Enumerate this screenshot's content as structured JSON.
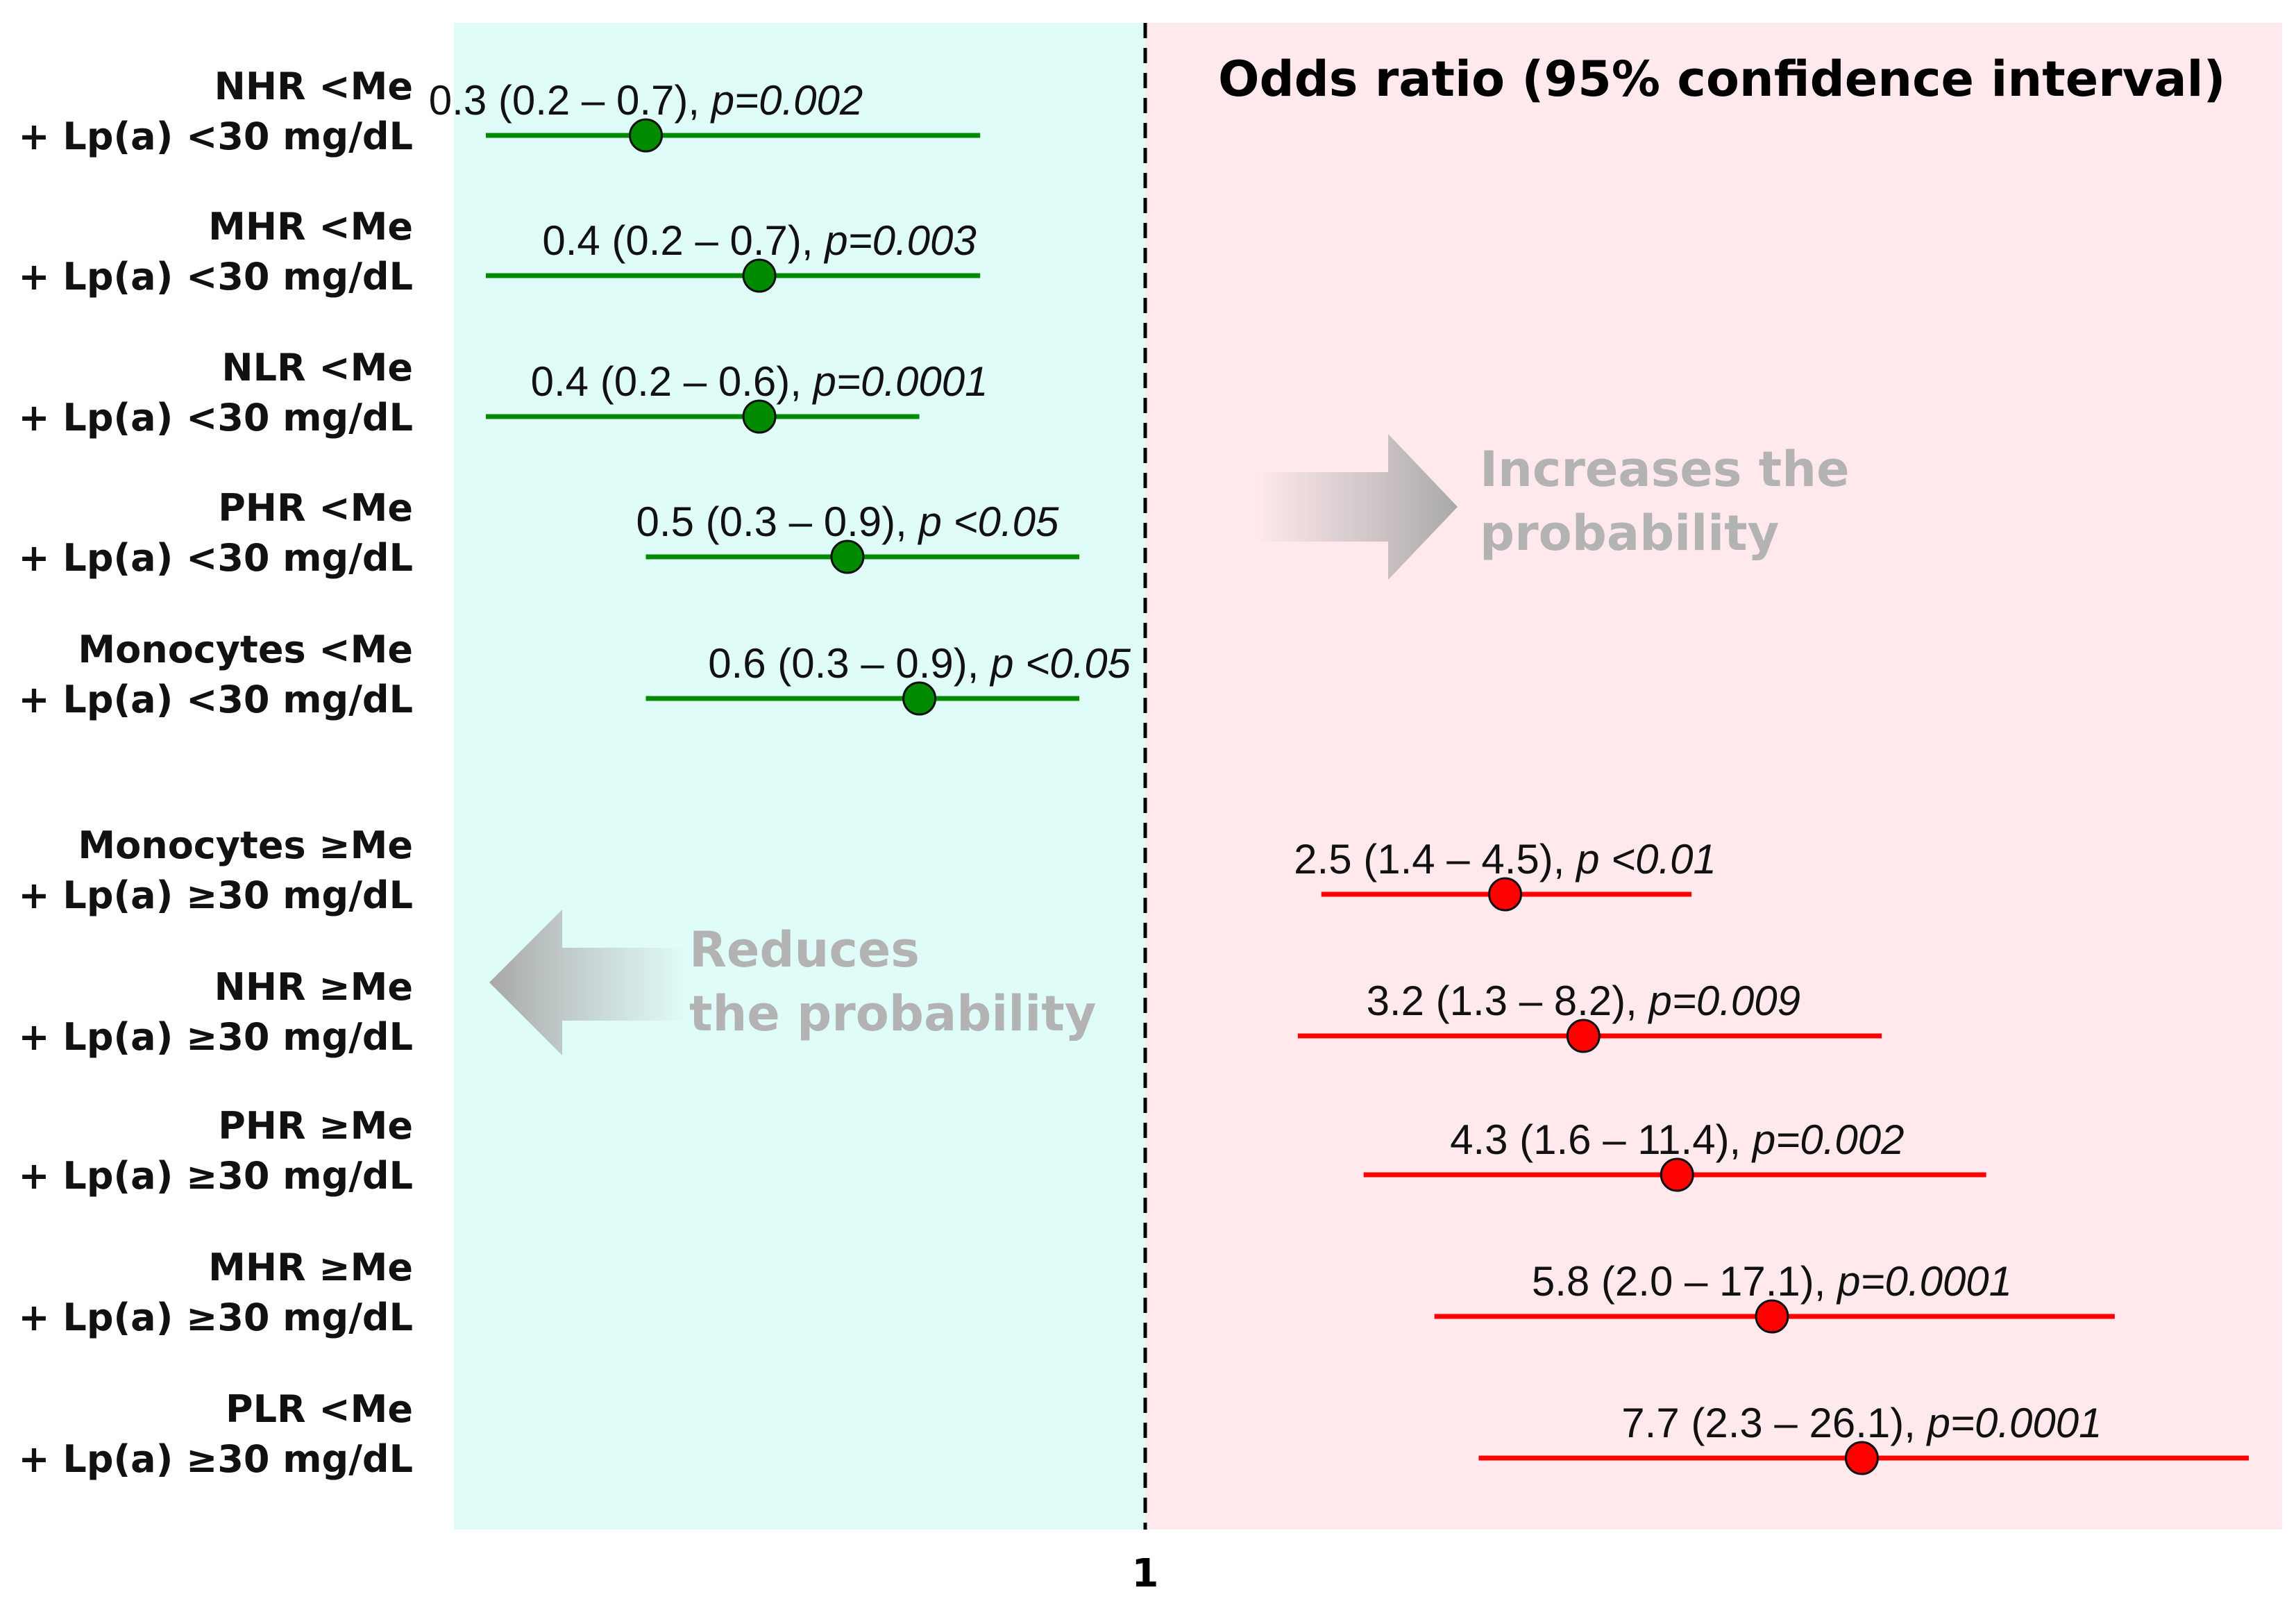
{
  "chart_data": {
    "type": "forest",
    "title": "Odds ratio (95% confidence interval)",
    "reference_value": 1,
    "reference_tick_label": "1",
    "hint_increase": [
      "Increases the",
      "probability"
    ],
    "hint_decrease": [
      "Reduces",
      "the probability"
    ],
    "colors": {
      "protective": "#008a00",
      "risk": "#ff0000",
      "left_panel_bg": "#e0fcf8",
      "right_panel_bg": "#ffe9ec",
      "arrow": "#b0b0b0"
    },
    "rows": [
      {
        "label_line1": "NHR <Me",
        "label_line2": "+ Lp(a) <30 mg/dL",
        "or": 0.3,
        "lo": 0.2,
        "hi": 0.7,
        "ci_text": "0.3 (0.2 – 0.7), ",
        "p_text": "p=0.002",
        "group": "protective"
      },
      {
        "label_line1": "MHR <Me",
        "label_line2": "+ Lp(a) <30 mg/dL",
        "or": 0.4,
        "lo": 0.2,
        "hi": 0.7,
        "ci_text": "0.4 (0.2 – 0.7), ",
        "p_text": "p=0.003",
        "group": "protective"
      },
      {
        "label_line1": "NLR <Me",
        "label_line2": "+ Lp(a) <30 mg/dL",
        "or": 0.4,
        "lo": 0.2,
        "hi": 0.6,
        "ci_text": "0.4 (0.2 – 0.6), ",
        "p_text": "p=0.0001",
        "group": "protective"
      },
      {
        "label_line1": "PHR <Me",
        "label_line2": "+ Lp(a) <30 mg/dL",
        "or": 0.5,
        "lo": 0.3,
        "hi": 0.9,
        "ci_text": "0.5 (0.3 – 0.9), ",
        "p_text": "p <0.05",
        "group": "protective"
      },
      {
        "label_line1": "Monocytes <Me",
        "label_line2": "+ Lp(a) <30 mg/dL",
        "or": 0.6,
        "lo": 0.3,
        "hi": 0.9,
        "ci_text": "0.6 (0.3 – 0.9), ",
        "p_text": "p <0.05",
        "group": "protective"
      },
      {
        "label_line1": "Monocytes ≥Me",
        "label_line2": "+ Lp(a) ≥30 mg/dL",
        "or": 2.5,
        "lo": 1.4,
        "hi": 4.5,
        "ci_text": "2.5 (1.4 – 4.5), ",
        "p_text": "p <0.01",
        "group": "risk"
      },
      {
        "label_line1": "NHR ≥Me",
        "label_line2": "+ Lp(a) ≥30 mg/dL",
        "or": 3.2,
        "lo": 1.3,
        "hi": 8.2,
        "ci_text": "3.2 (1.3 – 8.2), ",
        "p_text": "p=0.009",
        "group": "risk"
      },
      {
        "label_line1": "PHR ≥Me",
        "label_line2": "+ Lp(a) ≥30 mg/dL",
        "or": 4.3,
        "lo": 1.6,
        "hi": 11.4,
        "ci_text": "4.3 (1.6 – 11.4), ",
        "p_text": "p=0.002",
        "group": "risk"
      },
      {
        "label_line1": "MHR ≥Me",
        "label_line2": "+ Lp(a) ≥30 mg/dL",
        "or": 5.8,
        "lo": 2.0,
        "hi": 17.1,
        "ci_text": "5.8 (2.0 – 17.1), ",
        "p_text": "p=0.0001",
        "group": "risk"
      },
      {
        "label_line1": "PLR <Me",
        "label_line2": "+ Lp(a) ≥30 mg/dL",
        "or": 7.7,
        "lo": 2.3,
        "hi": 26.1,
        "ci_text": "7.7 (2.3 – 26.1), ",
        "p_text": "p=0.0001",
        "group": "risk"
      }
    ]
  }
}
